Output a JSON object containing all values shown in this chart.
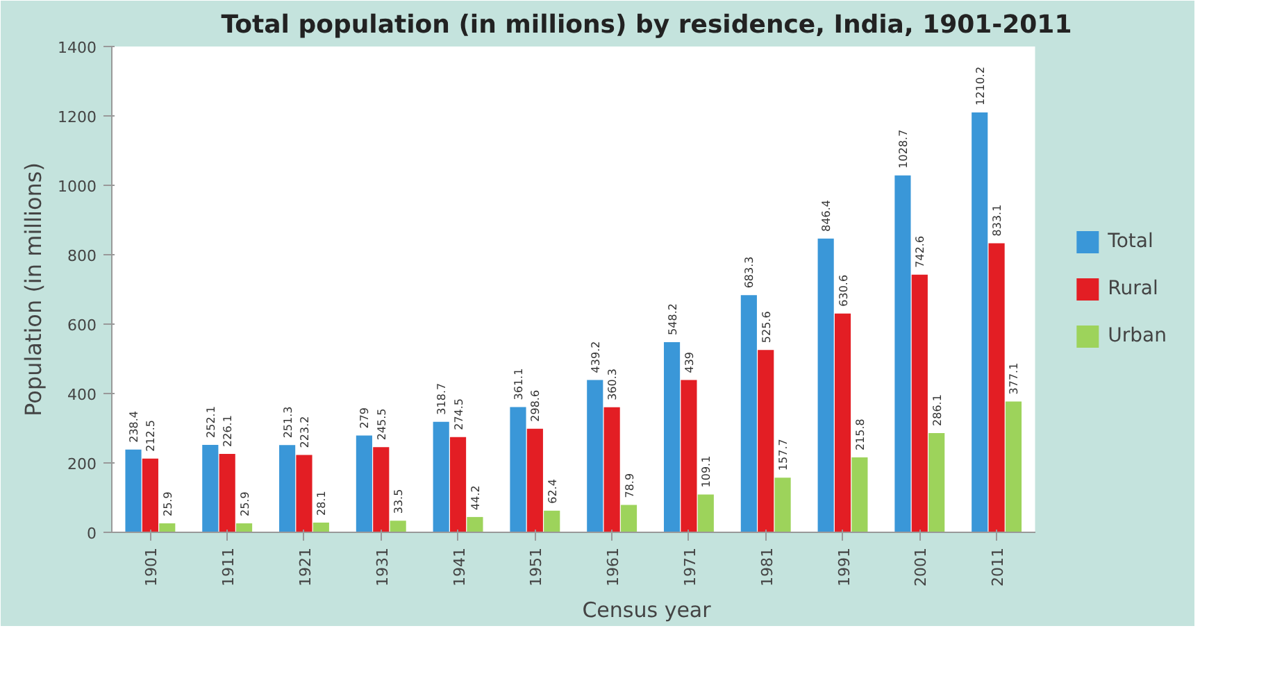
{
  "chart_data": {
    "type": "bar",
    "title": "Total population (in millions) by residence, India, 1901-2011",
    "xlabel": "Census year",
    "ylabel": "Population (in millions)",
    "categories": [
      "1901",
      "1911",
      "1921",
      "1931",
      "1941",
      "1951",
      "1961",
      "1971",
      "1981",
      "1991",
      "2001",
      "2011"
    ],
    "series": [
      {
        "name": "Total",
        "color": "#3a97d8",
        "values": [
          238.4,
          252.1,
          251.3,
          279,
          318.7,
          361.1,
          439.2,
          548.2,
          683.3,
          846.4,
          1028.7,
          1210.2
        ]
      },
      {
        "name": "Rural",
        "color": "#e31e24",
        "values": [
          212.5,
          226.1,
          223.2,
          245.5,
          274.5,
          298.6,
          360.3,
          439,
          525.6,
          630.6,
          742.6,
          833.1
        ]
      },
      {
        "name": "Urban",
        "color": "#9dd35b",
        "values": [
          25.9,
          25.9,
          28.1,
          33.5,
          44.2,
          62.4,
          78.9,
          109.1,
          157.7,
          215.8,
          286.1,
          377.1
        ]
      }
    ],
    "ylim": [
      0,
      1400
    ],
    "yticks": [
      0,
      200,
      400,
      600,
      800,
      1000,
      1200,
      1400
    ],
    "data_labels": true,
    "grid": false,
    "legend": "right"
  }
}
